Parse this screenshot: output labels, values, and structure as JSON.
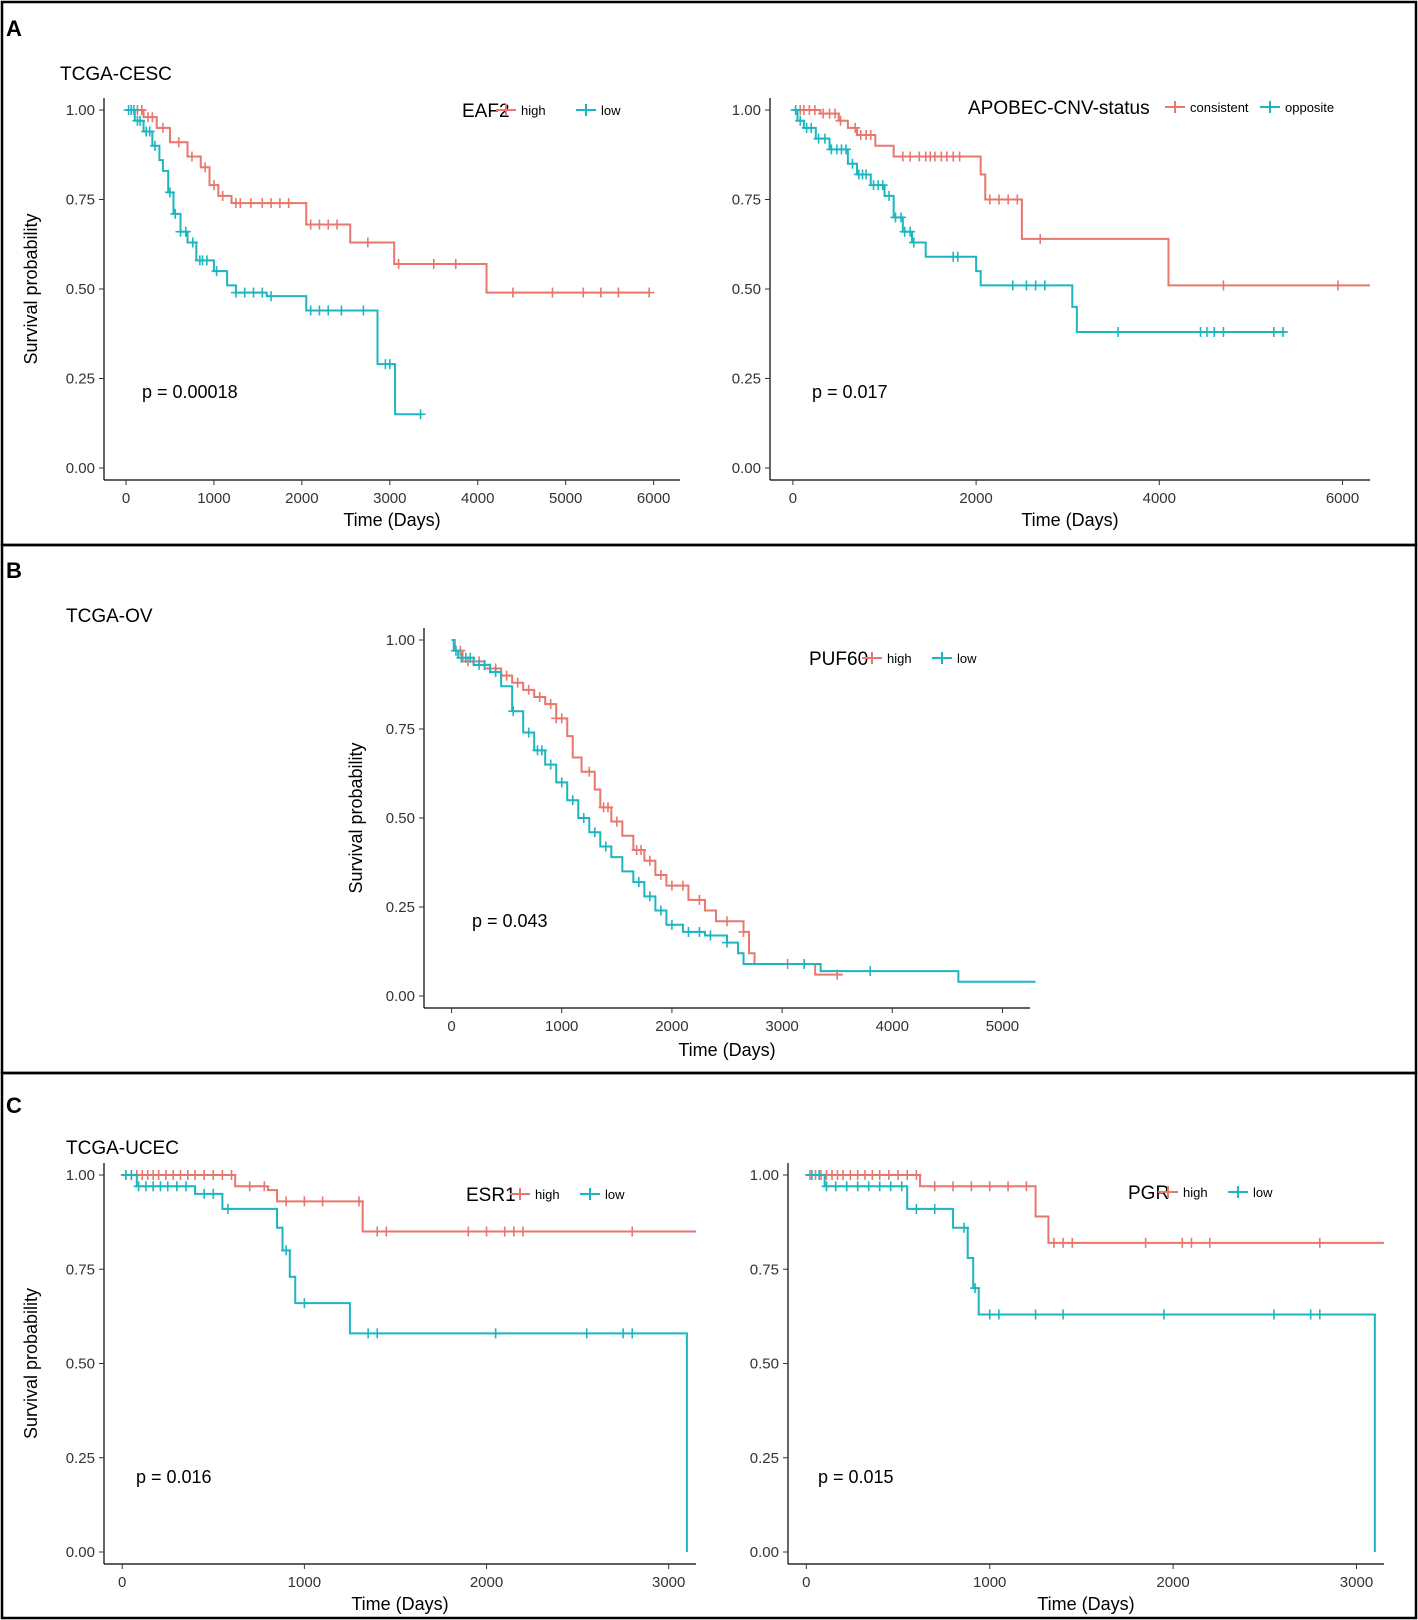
{
  "panels": [
    {
      "letter": "A",
      "cohort": "TCGA-CESC"
    },
    {
      "letter": "B",
      "cohort": "TCGA-OV"
    },
    {
      "letter": "C",
      "cohort": "TCGA-UCEC"
    }
  ],
  "colors": {
    "high": "#E8776E",
    "low": "#1BB6C0"
  },
  "chart_data": [
    {
      "id": "eaf2",
      "type": "line",
      "panel": "A",
      "legend_title": "EAF2",
      "pvalue": "p = 0.00018",
      "xlabel": "Time  (Days)",
      "ylabel": "Survival probability",
      "xlim": [
        -250,
        6300
      ],
      "ylim": [
        0,
        1
      ],
      "xticks": [
        0,
        1000,
        2000,
        3000,
        4000,
        5000,
        6000
      ],
      "yticks": [
        "0.00",
        "0.25",
        "0.50",
        "0.75",
        "1.00"
      ],
      "series": [
        {
          "name": "high",
          "color_key": "high",
          "steps": [
            [
              0,
              1.0
            ],
            [
              200,
              0.98
            ],
            [
              350,
              0.95
            ],
            [
              500,
              0.91
            ],
            [
              700,
              0.87
            ],
            [
              850,
              0.84
            ],
            [
              950,
              0.79
            ],
            [
              1050,
              0.76
            ],
            [
              1200,
              0.74
            ],
            [
              2050,
              0.68
            ],
            [
              2550,
              0.63
            ],
            [
              3050,
              0.57
            ],
            [
              4100,
              0.49
            ],
            [
              5950,
              0.49
            ]
          ],
          "censor": [
            60,
            130,
            180,
            250,
            300,
            420,
            600,
            750,
            900,
            1000,
            1100,
            1250,
            1300,
            1420,
            1550,
            1650,
            1750,
            1850,
            2100,
            2200,
            2300,
            2400,
            2750,
            3100,
            3500,
            3750,
            4400,
            4850,
            5200,
            5400,
            5600,
            5950
          ]
        },
        {
          "name": "low",
          "color_key": "low",
          "steps": [
            [
              0,
              1.0
            ],
            [
              100,
              0.97
            ],
            [
              200,
              0.94
            ],
            [
              300,
              0.9
            ],
            [
              380,
              0.86
            ],
            [
              420,
              0.83
            ],
            [
              480,
              0.77
            ],
            [
              540,
              0.71
            ],
            [
              620,
              0.66
            ],
            [
              700,
              0.63
            ],
            [
              800,
              0.58
            ],
            [
              1000,
              0.55
            ],
            [
              1150,
              0.51
            ],
            [
              1250,
              0.49
            ],
            [
              1600,
              0.48
            ],
            [
              2050,
              0.44
            ],
            [
              2860,
              0.29
            ],
            [
              3060,
              0.15
            ],
            [
              3350,
              0.15
            ]
          ],
          "censor": [
            30,
            60,
            90,
            130,
            160,
            230,
            270,
            330,
            500,
            560,
            620,
            680,
            760,
            840,
            870,
            920,
            1030,
            1250,
            1350,
            1450,
            1550,
            1650,
            2100,
            2200,
            2300,
            2450,
            2700,
            2950,
            3000,
            3350
          ]
        }
      ]
    },
    {
      "id": "apobec",
      "type": "line",
      "panel": "A",
      "legend_title": "APOBEC-CNV-status",
      "pvalue": "p = 0.017",
      "xlabel": "Time  (Days)",
      "ylabel": "",
      "xlim": [
        -250,
        6300
      ],
      "ylim": [
        0,
        1
      ],
      "xticks": [
        0,
        2000,
        4000,
        6000
      ],
      "yticks": [
        "0.00",
        "0.25",
        "0.50",
        "0.75",
        "1.00"
      ],
      "series": [
        {
          "name": "consistent",
          "color_key": "high",
          "steps": [
            [
              0,
              1.0
            ],
            [
              300,
              0.99
            ],
            [
              500,
              0.97
            ],
            [
              600,
              0.95
            ],
            [
              700,
              0.93
            ],
            [
              900,
              0.9
            ],
            [
              1100,
              0.87
            ],
            [
              2050,
              0.82
            ],
            [
              2100,
              0.75
            ],
            [
              2500,
              0.64
            ],
            [
              4100,
              0.51
            ],
            [
              6300,
              0.51
            ]
          ],
          "censor": [
            80,
            120,
            180,
            240,
            330,
            400,
            460,
            520,
            680,
            740,
            800,
            850,
            1200,
            1280,
            1380,
            1450,
            1500,
            1550,
            1620,
            1680,
            1750,
            1820,
            2150,
            2250,
            2350,
            2450,
            2700,
            4700,
            5950
          ]
        },
        {
          "name": "opposite",
          "color_key": "low",
          "steps": [
            [
              0,
              1.0
            ],
            [
              50,
              0.97
            ],
            [
              120,
              0.95
            ],
            [
              250,
              0.92
            ],
            [
              400,
              0.89
            ],
            [
              600,
              0.85
            ],
            [
              700,
              0.82
            ],
            [
              850,
              0.79
            ],
            [
              1000,
              0.76
            ],
            [
              1100,
              0.7
            ],
            [
              1200,
              0.66
            ],
            [
              1300,
              0.63
            ],
            [
              1450,
              0.59
            ],
            [
              2000,
              0.55
            ],
            [
              2050,
              0.51
            ],
            [
              3050,
              0.45
            ],
            [
              3100,
              0.38
            ],
            [
              5380,
              0.38
            ]
          ],
          "censor": [
            30,
            80,
            150,
            200,
            280,
            350,
            420,
            480,
            530,
            580,
            650,
            720,
            760,
            800,
            880,
            930,
            980,
            1050,
            1120,
            1180,
            1220,
            1280,
            1320,
            1750,
            1800,
            2400,
            2550,
            2650,
            2750,
            3550,
            4450,
            4520,
            4600,
            4700,
            5250,
            5350
          ]
        }
      ]
    },
    {
      "id": "puf60",
      "type": "line",
      "panel": "B",
      "legend_title": "PUF60",
      "pvalue": "p = 0.043",
      "xlabel": "Time  (Days)",
      "ylabel": "Survival probability",
      "xlim": [
        -250,
        5250
      ],
      "ylim": [
        0,
        1
      ],
      "xticks": [
        0,
        1000,
        2000,
        3000,
        4000,
        5000
      ],
      "yticks": [
        "0.00",
        "0.25",
        "0.50",
        "0.75",
        "1.00"
      ],
      "series": [
        {
          "name": "high",
          "color_key": "high",
          "steps": [
            [
              0,
              1.0
            ],
            [
              30,
              0.97
            ],
            [
              100,
              0.94
            ],
            [
              300,
              0.92
            ],
            [
              450,
              0.9
            ],
            [
              550,
              0.88
            ],
            [
              650,
              0.86
            ],
            [
              750,
              0.84
            ],
            [
              850,
              0.82
            ],
            [
              950,
              0.78
            ],
            [
              1050,
              0.73
            ],
            [
              1100,
              0.67
            ],
            [
              1180,
              0.63
            ],
            [
              1300,
              0.58
            ],
            [
              1350,
              0.53
            ],
            [
              1450,
              0.49
            ],
            [
              1550,
              0.45
            ],
            [
              1650,
              0.41
            ],
            [
              1750,
              0.38
            ],
            [
              1850,
              0.34
            ],
            [
              1950,
              0.31
            ],
            [
              2150,
              0.27
            ],
            [
              2300,
              0.24
            ],
            [
              2400,
              0.21
            ],
            [
              2650,
              0.18
            ],
            [
              2700,
              0.12
            ],
            [
              2750,
              0.09
            ],
            [
              3200,
              0.09
            ],
            [
              3300,
              0.06
            ],
            [
              3550,
              0.06
            ]
          ],
          "censor": [
            80,
            150,
            200,
            250,
            350,
            400,
            500,
            600,
            700,
            800,
            900,
            950,
            1000,
            1250,
            1380,
            1420,
            1500,
            1680,
            1720,
            1800,
            1900,
            2000,
            2100,
            2250,
            2500,
            2650,
            3050,
            3500
          ]
        },
        {
          "name": "low",
          "color_key": "low",
          "steps": [
            [
              0,
              1.0
            ],
            [
              20,
              0.97
            ],
            [
              60,
              0.95
            ],
            [
              200,
              0.93
            ],
            [
              350,
              0.91
            ],
            [
              450,
              0.87
            ],
            [
              550,
              0.8
            ],
            [
              650,
              0.74
            ],
            [
              750,
              0.69
            ],
            [
              850,
              0.65
            ],
            [
              950,
              0.6
            ],
            [
              1050,
              0.55
            ],
            [
              1150,
              0.5
            ],
            [
              1250,
              0.46
            ],
            [
              1350,
              0.42
            ],
            [
              1450,
              0.39
            ],
            [
              1550,
              0.35
            ],
            [
              1650,
              0.32
            ],
            [
              1750,
              0.28
            ],
            [
              1850,
              0.24
            ],
            [
              1950,
              0.2
            ],
            [
              2100,
              0.18
            ],
            [
              2300,
              0.17
            ],
            [
              2500,
              0.15
            ],
            [
              2600,
              0.12
            ],
            [
              2650,
              0.09
            ],
            [
              3350,
              0.07
            ],
            [
              4600,
              0.04
            ],
            [
              5300,
              0.04
            ]
          ],
          "censor": [
            40,
            90,
            130,
            170,
            250,
            300,
            400,
            560,
            700,
            780,
            820,
            900,
            1000,
            1100,
            1200,
            1300,
            1400,
            1700,
            1800,
            1900,
            2000,
            2150,
            2250,
            2350,
            2500,
            3200,
            3800
          ]
        }
      ]
    },
    {
      "id": "esr1",
      "type": "line",
      "panel": "C",
      "legend_title": "ESR1",
      "pvalue": "p = 0.016",
      "xlabel": "Time  (Days)",
      "ylabel": "Survival probability",
      "xlim": [
        -100,
        3150
      ],
      "ylim": [
        0,
        1
      ],
      "xticks": [
        0,
        1000,
        2000,
        3000
      ],
      "yticks": [
        "0.00",
        "0.25",
        "0.50",
        "0.75",
        "1.00"
      ],
      "series": [
        {
          "name": "high",
          "color_key": "high",
          "steps": [
            [
              0,
              1.0
            ],
            [
              620,
              0.97
            ],
            [
              800,
              0.96
            ],
            [
              850,
              0.93
            ],
            [
              1320,
              0.85
            ],
            [
              3150,
              0.85
            ]
          ],
          "censor": [
            20,
            50,
            80,
            110,
            140,
            170,
            200,
            240,
            280,
            320,
            360,
            400,
            450,
            500,
            550,
            600,
            700,
            780,
            900,
            1000,
            1100,
            1300,
            1400,
            1450,
            1900,
            2000,
            2100,
            2150,
            2200,
            2800
          ]
        },
        {
          "name": "low",
          "color_key": "low",
          "steps": [
            [
              0,
              1.0
            ],
            [
              80,
              0.97
            ],
            [
              400,
              0.95
            ],
            [
              550,
              0.91
            ],
            [
              850,
              0.86
            ],
            [
              880,
              0.8
            ],
            [
              920,
              0.73
            ],
            [
              950,
              0.66
            ],
            [
              1250,
              0.58
            ],
            [
              3100,
              0.58
            ],
            [
              3100,
              0.0
            ]
          ],
          "censor": [
            20,
            50,
            90,
            130,
            170,
            210,
            250,
            300,
            350,
            450,
            500,
            580,
            900,
            1000,
            1350,
            1400,
            2050,
            2550,
            2750,
            2800
          ]
        }
      ]
    },
    {
      "id": "pgr",
      "type": "line",
      "panel": "C",
      "legend_title": "PGR",
      "pvalue": "p = 0.015",
      "xlabel": "Time  (Days)",
      "ylabel": "",
      "xlim": [
        -100,
        3150
      ],
      "ylim": [
        0,
        1
      ],
      "xticks": [
        0,
        1000,
        2000,
        3000
      ],
      "yticks": [
        "0.00",
        "0.25",
        "0.50",
        "0.75",
        "1.00"
      ],
      "series": [
        {
          "name": "high",
          "color_key": "high",
          "steps": [
            [
              0,
              1.0
            ],
            [
              620,
              0.97
            ],
            [
              1250,
              0.89
            ],
            [
              1320,
              0.82
            ],
            [
              3150,
              0.82
            ]
          ],
          "censor": [
            20,
            50,
            80,
            110,
            140,
            170,
            200,
            240,
            280,
            320,
            360,
            400,
            450,
            500,
            550,
            600,
            700,
            800,
            900,
            1000,
            1100,
            1200,
            1350,
            1400,
            1450,
            1850,
            2050,
            2100,
            2200,
            2800
          ]
        },
        {
          "name": "low",
          "color_key": "low",
          "steps": [
            [
              0,
              1.0
            ],
            [
              100,
              0.97
            ],
            [
              550,
              0.91
            ],
            [
              800,
              0.86
            ],
            [
              880,
              0.78
            ],
            [
              910,
              0.7
            ],
            [
              940,
              0.63
            ],
            [
              3100,
              0.63
            ],
            [
              3100,
              0.0
            ]
          ],
          "censor": [
            30,
            70,
            110,
            160,
            220,
            280,
            340,
            400,
            460,
            520,
            600,
            700,
            860,
            920,
            1000,
            1050,
            1250,
            1400,
            1950,
            2550,
            2750,
            2800
          ]
        }
      ]
    }
  ]
}
